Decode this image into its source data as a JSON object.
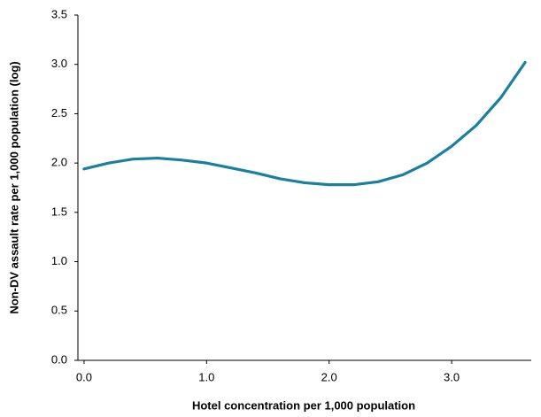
{
  "chart_data": {
    "type": "line",
    "x_label": "Hotel concentration per 1,000 population",
    "y_label": "Non-DV assault rate per 1,000 population (log)",
    "x": [
      0,
      0.2,
      0.4,
      0.6,
      0.8,
      1.0,
      1.2,
      1.4,
      1.6,
      1.8,
      2.0,
      2.2,
      2.4,
      2.6,
      2.8,
      3.0,
      3.2,
      3.4,
      3.6
    ],
    "series": [
      {
        "color": "#1a80a0",
        "values": [
          1.94,
          2.0,
          2.04,
          2.05,
          2.03,
          2.0,
          1.95,
          1.9,
          1.84,
          1.8,
          1.78,
          1.78,
          1.81,
          1.88,
          2.0,
          2.17,
          2.38,
          2.66,
          3.02
        ]
      }
    ],
    "xlim": [
      -0.05,
      3.65
    ],
    "xticks": [
      {
        "value": 0,
        "label": "0.0"
      },
      {
        "value": 1,
        "label": "1.0"
      },
      {
        "value": 2,
        "label": "2.0"
      },
      {
        "value": 3,
        "label": "3.0"
      }
    ],
    "ylim": [
      0,
      3.5
    ],
    "yticks": [
      {
        "value": 0,
        "label": "0.0"
      },
      {
        "value": 0.5,
        "label": "0.5"
      },
      {
        "value": 1,
        "label": "1.0"
      },
      {
        "value": 1.5,
        "label": "1.5"
      },
      {
        "value": 2,
        "label": "2.0"
      },
      {
        "value": 2.5,
        "label": "2.5"
      },
      {
        "value": 3,
        "label": "3.0"
      },
      {
        "value": 3.5,
        "label": "3.5"
      }
    ],
    "grid": false
  }
}
